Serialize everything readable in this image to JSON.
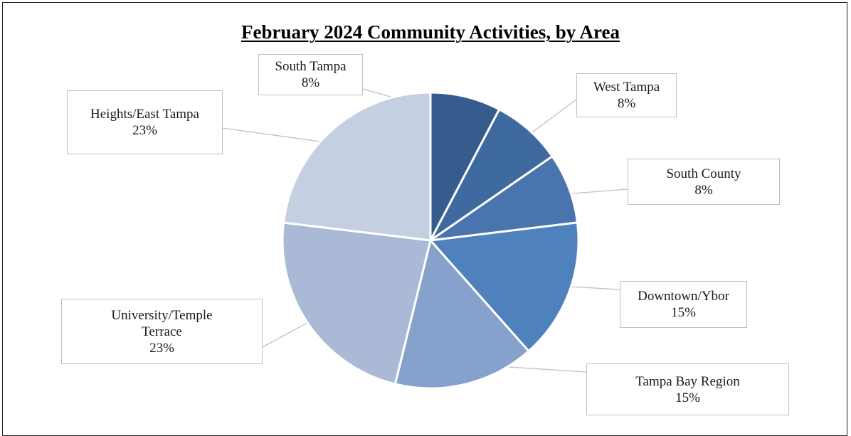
{
  "chart_data": {
    "type": "pie",
    "title": "February 2024 Community Activities, by Area",
    "slices": [
      {
        "label": "South Tampa",
        "label_lines": [
          "South Tampa"
        ],
        "value": 7.69,
        "pct_label": "8%",
        "color": "#355c8c"
      },
      {
        "label": "West Tampa",
        "label_lines": [
          "West Tampa"
        ],
        "value": 7.69,
        "pct_label": "8%",
        "color": "#3f6aa0"
      },
      {
        "label": "South County",
        "label_lines": [
          "South County"
        ],
        "value": 7.69,
        "pct_label": "8%",
        "color": "#4a74ad"
      },
      {
        "label": "Downtown/Ybor",
        "label_lines": [
          "Downtown/Ybor"
        ],
        "value": 15.38,
        "pct_label": "15%",
        "color": "#4f81bd"
      },
      {
        "label": "Tampa Bay Region",
        "label_lines": [
          "Tampa Bay Region"
        ],
        "value": 15.38,
        "pct_label": "15%",
        "color": "#86a1cb"
      },
      {
        "label": "University/Temple Terrace",
        "label_lines": [
          "University/Temple",
          "Terrace"
        ],
        "value": 23.08,
        "pct_label": "23%",
        "color": "#a9b9d6"
      },
      {
        "label": "Heights/East Tampa",
        "label_lines": [
          "Heights/East Tampa"
        ],
        "value": 23.08,
        "pct_label": "23%",
        "color": "#c4cfe2"
      }
    ],
    "legend": "none",
    "data_labels": "callouts"
  }
}
